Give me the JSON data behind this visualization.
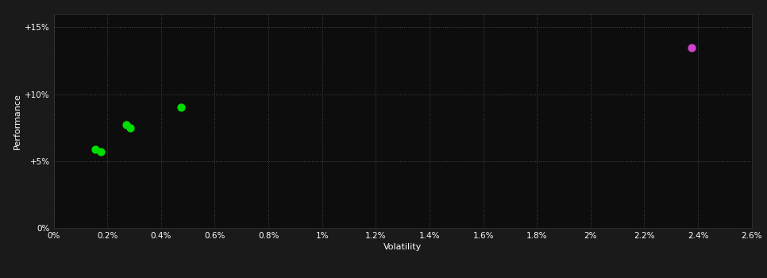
{
  "background_color": "#1a1a1a",
  "plot_bg_color": "#0d0d0d",
  "text_color": "#ffffff",
  "grid_color": "#555555",
  "grid_style": ":",
  "xlabel": "Volatility",
  "ylabel": "Performance",
  "xlim": [
    0.0,
    0.026
  ],
  "ylim": [
    0.0,
    0.16
  ],
  "xticks": [
    0.0,
    0.002,
    0.004,
    0.006,
    0.008,
    0.01,
    0.012,
    0.014,
    0.016,
    0.018,
    0.02,
    0.022,
    0.024,
    0.026
  ],
  "xtick_labels": [
    "0%",
    "0.2%",
    "0.4%",
    "0.6%",
    "0.8%",
    "1%",
    "1.2%",
    "1.4%",
    "1.6%",
    "1.8%",
    "2%",
    "2.2%",
    "2.4%",
    "2.6%"
  ],
  "yticks": [
    0.0,
    0.05,
    0.1,
    0.15
  ],
  "ytick_labels": [
    "0%",
    "+5%",
    "+10%",
    "+15%"
  ],
  "green_points": [
    [
      0.00155,
      0.059
    ],
    [
      0.00175,
      0.057
    ],
    [
      0.0027,
      0.077
    ],
    [
      0.00285,
      0.075
    ],
    [
      0.00475,
      0.09
    ]
  ],
  "magenta_points": [
    [
      0.02375,
      0.135
    ]
  ],
  "green_color": "#00dd00",
  "magenta_color": "#cc44cc",
  "marker_size": 55,
  "xlabel_fontsize": 8,
  "ylabel_fontsize": 8,
  "tick_fontsize": 7.5
}
